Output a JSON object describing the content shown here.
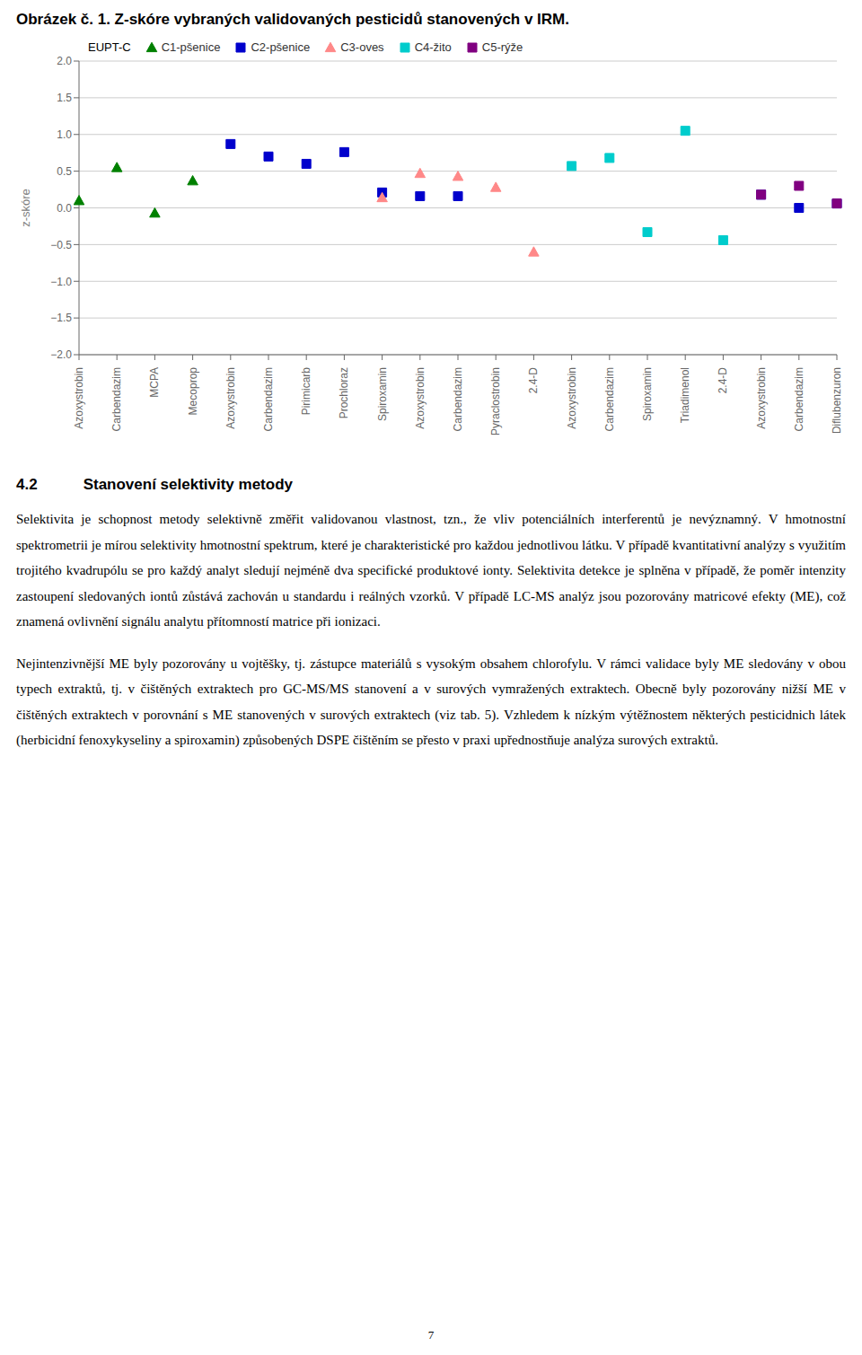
{
  "chart_data": {
    "type": "scatter",
    "title": "Obrázek č. 1. Z-skóre vybraných validovaných pesticidů stanovených v IRM.",
    "y_label": "z-skóre",
    "legend_title": "EUPT-C",
    "legend": "top",
    "grid": true,
    "categories": [
      "Azoxystrobin",
      "Carbendazim",
      "MCPA",
      "Mecoprop",
      "Azoxystrobin",
      "Carbendazim",
      "Pirimicarb",
      "Prochloraz",
      "Spiroxamin",
      "Azoxystrobin",
      "Carbendazim",
      "Pyraclostrobin",
      "2.4-D",
      "Azoxystrobin",
      "Carbendazim",
      "Spiroxamin",
      "Triadimenol",
      "2.4-D",
      "Azoxystrobin",
      "Carbendazim",
      "Diflubenzuron"
    ],
    "ylim": [
      -2.0,
      2.0
    ],
    "yticks": [
      {
        "value": -2.0,
        "label": "−2.0"
      },
      {
        "value": -1.5,
        "label": "−1.5"
      },
      {
        "value": -1.0,
        "label": "−1.0"
      },
      {
        "value": -0.5,
        "label": "−0.5"
      },
      {
        "value": 0.0,
        "label": "0.0"
      },
      {
        "value": 0.5,
        "label": "0.5"
      },
      {
        "value": 1.0,
        "label": "1.0"
      },
      {
        "value": 1.5,
        "label": "1.5"
      },
      {
        "value": 2.0,
        "label": "2.0"
      }
    ],
    "series": [
      {
        "name": "C1-pšenice",
        "color": "#008000",
        "marker": "triangle",
        "values": [
          0.1,
          0.55,
          -0.07,
          0.37,
          null,
          null,
          null,
          null,
          null,
          null,
          null,
          null,
          null,
          null,
          null,
          null,
          null,
          null,
          null,
          null,
          null
        ]
      },
      {
        "name": "C2-pšenice",
        "color": "#0000CC",
        "marker": "square",
        "values": [
          null,
          null,
          null,
          null,
          0.87,
          0.7,
          0.6,
          0.76,
          0.21,
          0.16,
          0.16,
          null,
          null,
          null,
          null,
          null,
          null,
          null,
          0.18,
          0.0,
          0.06
        ]
      },
      {
        "name": "C3-oves",
        "color": "#FF8888",
        "marker": "triangle",
        "values": [
          null,
          null,
          null,
          null,
          null,
          null,
          null,
          null,
          0.14,
          0.47,
          0.43,
          0.28,
          -0.6,
          null,
          null,
          null,
          null,
          null,
          null,
          null,
          null
        ]
      },
      {
        "name": "C4-žito",
        "color": "#00CCCC",
        "marker": "square",
        "values": [
          null,
          null,
          null,
          null,
          null,
          null,
          null,
          null,
          null,
          null,
          null,
          null,
          null,
          0.57,
          0.68,
          -0.33,
          1.05,
          -0.44,
          null,
          null,
          null
        ]
      },
      {
        "name": "C5-rýže",
        "color": "#800080",
        "marker": "square",
        "values": [
          null,
          null,
          null,
          null,
          null,
          null,
          null,
          null,
          null,
          null,
          null,
          null,
          null,
          null,
          null,
          null,
          null,
          null,
          0.18,
          0.3,
          0.06
        ]
      }
    ]
  },
  "page": {
    "section_heading": "4.2   Stanovení selektivity metody",
    "paragraphs": [
      "Selektivita je schopnost metody selektivně změřit validovanou vlastnost, tzn., že vliv potenciálních interferentů je nevýznamný. V hmotnostní spektrometrii je mírou selektivity hmotnostní spektrum, které je charakteristické pro každou jednotlivou látku. V případě kvantitativní analýzy s využitím trojitého kvadrupólu se pro každý analyt sledují nejméně dva specifické produktové ionty. Selektivita detekce je splněna v případě, že poměr intenzity zastoupení sledovaných iontů zůstává zachován u standardu i reálných vzorků. V případě LC-MS analýz jsou pozorovány matricové efekty (ME), což znamená ovlivnění signálu analytu přítomností matrice při ionizaci.",
      "Nejintenzivnější ME byly pozorovány u vojtěšky, tj. zástupce materiálů s vysokým obsahem chlorofylu. V rámci validace byly ME sledovány v obou typech extraktů, tj. v čištěných extraktech pro GC-MS/MS stanovení a v surových vymražených extraktech. Obecně byly pozorovány nižší ME v čištěných extraktech v porovnání s ME stanovených v surových extraktech (viz tab. 5). Vzhledem k nízkým výtěžnostem některých pesticidnich látek (herbicidní fenoxykyseliny a spiroxamin) způsobených DSPE čištěním se přesto v praxi upřednostňuje analýza surových extraktů."
    ],
    "page_number": "7"
  }
}
